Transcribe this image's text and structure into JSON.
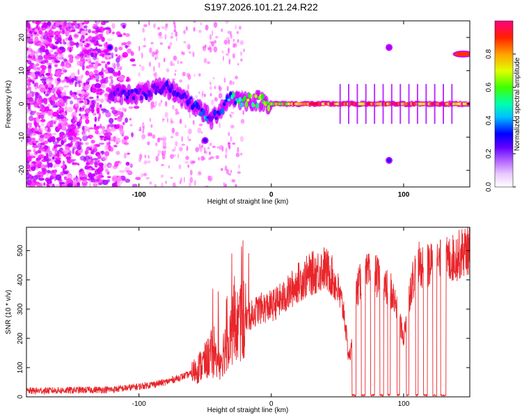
{
  "title": "S197.2026.101.21.24.R22",
  "colors": {
    "snr_line": "#e8262b",
    "axis": "#000000",
    "spec_low": "#e9d8fb",
    "spec_mid": "#7d1cf5"
  },
  "chart_data": [
    {
      "type": "heatmap",
      "name": "spectrogram",
      "xlabel": "Height of straight line (km)",
      "ylabel": "Frequency (Hz)",
      "xlim": [
        -185,
        150
      ],
      "ylim": [
        -25,
        25
      ],
      "xticks": [
        -100,
        0,
        100
      ],
      "yticks": [
        -20,
        -10,
        0,
        10,
        20
      ],
      "colorbar": {
        "label": "Normalized spectral amplitude",
        "range": [
          0,
          1
        ],
        "ticks": [
          "0.0",
          "0.2",
          "0.4",
          "0.6",
          "0.8"
        ],
        "ticks_values": [
          0.0,
          0.2,
          0.4,
          0.6,
          0.8
        ],
        "colormap": [
          "#ffffff",
          "#ff00ff",
          "#8000ff",
          "#0000ff",
          "#00ffff",
          "#00ff00",
          "#ffff00",
          "#ff8000",
          "#ff0000",
          "#ff0080"
        ]
      },
      "ridge": {
        "x": [
          -120,
          -110,
          -100,
          -90,
          -80,
          -70,
          -60,
          -50,
          -45,
          -40,
          -35,
          -30,
          -20,
          -10,
          0,
          20,
          50,
          100,
          140
        ],
        "y": [
          3,
          3,
          3,
          4,
          5,
          3,
          0,
          -3,
          -5,
          -2,
          0,
          2,
          1,
          1,
          0,
          0,
          0,
          0,
          0
        ],
        "amplitude": [
          0.25,
          0.3,
          0.3,
          0.25,
          0.3,
          0.3,
          0.35,
          0.4,
          0.3,
          0.35,
          0.4,
          0.45,
          0.6,
          0.65,
          0.7,
          0.85,
          0.9,
          0.9,
          0.9
        ]
      },
      "features": [
        {
          "x": 89,
          "y": 17,
          "amplitude": 0.2
        },
        {
          "x": 89,
          "y": -17,
          "amplitude": 0.35
        },
        {
          "x": 145,
          "y": 15,
          "amplitude": 0.85
        },
        {
          "x": -50,
          "y": -11,
          "amplitude": 0.3
        },
        {
          "x": -122,
          "y": 17,
          "amplitude": 0.3
        }
      ]
    },
    {
      "type": "line",
      "name": "snr",
      "xlabel": "Height of straight line (km)",
      "ylabel": "SNR (10 * v/v)",
      "xlim": [
        -185,
        150
      ],
      "ylim": [
        0,
        580
      ],
      "xticks": [
        -100,
        0,
        100
      ],
      "yticks": [
        0,
        100,
        200,
        300,
        400,
        500
      ],
      "envelope": {
        "x": [
          -185,
          -120,
          -100,
          -80,
          -60,
          -50,
          -45,
          -40,
          -30,
          -20,
          -10,
          0,
          10,
          20,
          30,
          40,
          45,
          50,
          55,
          58,
          60,
          62,
          65,
          70,
          75,
          80,
          85,
          90,
          95,
          100,
          105,
          110,
          120,
          130,
          140,
          150
        ],
        "y": [
          20,
          25,
          35,
          50,
          80,
          120,
          150,
          110,
          230,
          260,
          300,
          310,
          340,
          390,
          420,
          440,
          420,
          370,
          290,
          150,
          140,
          300,
          370,
          410,
          420,
          410,
          370,
          370,
          300,
          200,
          370,
          450,
          450,
          460,
          480,
          510
        ]
      },
      "dropouts": [
        {
          "x_start": 61,
          "x_end": 64
        },
        {
          "x_start": 68,
          "x_end": 71
        },
        {
          "x_start": 75,
          "x_end": 78
        },
        {
          "x_start": 82,
          "x_end": 85
        },
        {
          "x_start": 88,
          "x_end": 90
        },
        {
          "x_start": 95,
          "x_end": 97
        },
        {
          "x_start": 102,
          "x_end": 104
        },
        {
          "x_start": 109,
          "x_end": 111
        },
        {
          "x_start": 115,
          "x_end": 118
        },
        {
          "x_start": 122,
          "x_end": 125
        },
        {
          "x_start": 128,
          "x_end": 132
        }
      ]
    }
  ]
}
